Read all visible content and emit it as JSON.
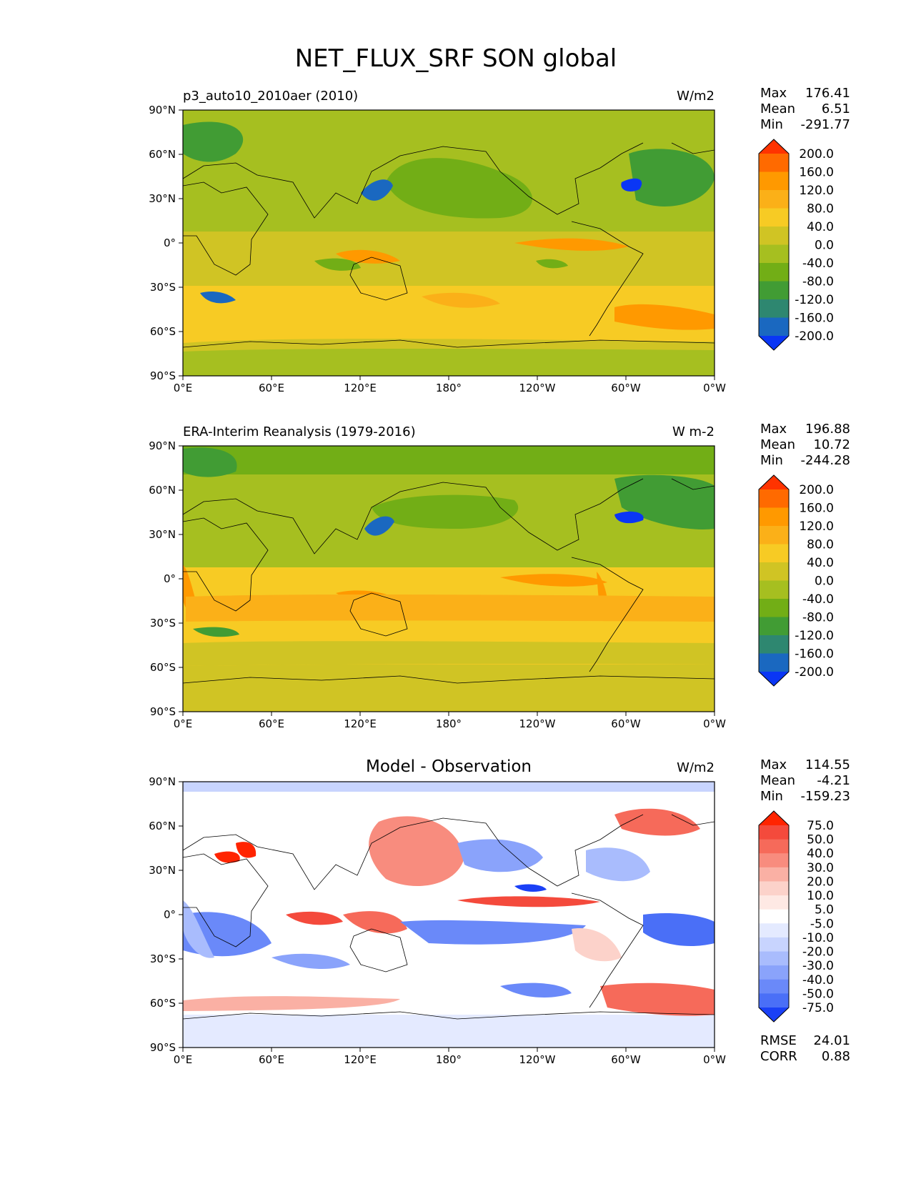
{
  "title": "NET_FLUX_SRF SON global",
  "x_ticks": [
    "0°E",
    "60°E",
    "120°E",
    "180°",
    "120°W",
    "60°W",
    "0°W"
  ],
  "y_ticks": [
    "90°N",
    "60°N",
    "30°N",
    "0°",
    "30°S",
    "60°S",
    "90°S"
  ],
  "stat_labels": {
    "max": "Max",
    "mean": "Mean",
    "min": "Min",
    "rmse": "RMSE",
    "corr": "CORR"
  },
  "panels": [
    {
      "title": "p3_auto10_2010aer (2010)",
      "title_align": "left",
      "units": "W/m2",
      "stats": {
        "max": "176.41",
        "mean": "6.51",
        "min": "-291.77"
      },
      "colorbar": {
        "labels": [
          "200.0",
          "160.0",
          "120.0",
          "80.0",
          "40.0",
          "0.0",
          "-40.0",
          "-80.0",
          "-120.0",
          "-160.0",
          "-200.0"
        ],
        "colors": [
          "#ff3300",
          "#ff6a00",
          "#ff9900",
          "#fbb018",
          "#f7cb24",
          "#d0c424",
          "#a6bf20",
          "#72ae16",
          "#419c34",
          "#2e8770",
          "#1a68c0",
          "#0a36f5"
        ]
      }
    },
    {
      "title": "ERA-Interim Reanalysis (1979-2016)",
      "title_align": "left",
      "units": "W m-2",
      "stats": {
        "max": "196.88",
        "mean": "10.72",
        "min": "-244.28"
      },
      "colorbar": {
        "labels": [
          "200.0",
          "160.0",
          "120.0",
          "80.0",
          "40.0",
          "0.0",
          "-40.0",
          "-80.0",
          "-120.0",
          "-160.0",
          "-200.0"
        ],
        "colors": [
          "#ff3300",
          "#ff6a00",
          "#ff9900",
          "#fbb018",
          "#f7cb24",
          "#d0c424",
          "#a6bf20",
          "#72ae16",
          "#419c34",
          "#2e8770",
          "#1a68c0",
          "#0a36f5"
        ]
      }
    },
    {
      "title": "Model - Observation",
      "title_align": "center",
      "units": "W/m2",
      "stats": {
        "max": "114.55",
        "mean": "-4.21",
        "min": "-159.23"
      },
      "rmse": "24.01",
      "corr": "0.88",
      "colorbar": {
        "labels": [
          "75.0",
          "50.0",
          "40.0",
          "30.0",
          "20.0",
          "10.0",
          "5.0",
          "-5.0",
          "-10.0",
          "-20.0",
          "-30.0",
          "-40.0",
          "-50.0",
          "-75.0"
        ],
        "colors": [
          "#ff2400",
          "#f44a3c",
          "#f66a5a",
          "#f88c7e",
          "#fab0a4",
          "#fcd2ca",
          "#fee9e4",
          "#ffffff",
          "#e4eaff",
          "#c8d4fe",
          "#a9bcfd",
          "#8aa3fb",
          "#6a89f9",
          "#4a6ff7",
          "#1a40f6"
        ]
      }
    }
  ],
  "chart_data": [
    {
      "type": "heatmap",
      "title": "p3_auto10_2010aer (2010)",
      "units": "W/m2",
      "xlabel": "",
      "ylabel": "",
      "xlim": [
        0,
        360
      ],
      "ylim": [
        -90,
        90
      ],
      "x_tick_values": [
        0,
        60,
        120,
        180,
        240,
        300,
        360
      ],
      "y_tick_values": [
        90,
        60,
        30,
        0,
        -30,
        -60,
        -90
      ],
      "levels": [
        -200,
        -160,
        -120,
        -80,
        -40,
        0,
        40,
        80,
        120,
        160,
        200
      ],
      "max": 176.41,
      "mean": 6.51,
      "min": -291.77
    },
    {
      "type": "heatmap",
      "title": "ERA-Interim Reanalysis (1979-2016)",
      "units": "W m-2",
      "xlim": [
        0,
        360
      ],
      "ylim": [
        -90,
        90
      ],
      "x_tick_values": [
        0,
        60,
        120,
        180,
        240,
        300,
        360
      ],
      "y_tick_values": [
        90,
        60,
        30,
        0,
        -30,
        -60,
        -90
      ],
      "levels": [
        -200,
        -160,
        -120,
        -80,
        -40,
        0,
        40,
        80,
        120,
        160,
        200
      ],
      "max": 196.88,
      "mean": 10.72,
      "min": -244.28
    },
    {
      "type": "heatmap",
      "title": "Model - Observation",
      "units": "W/m2",
      "xlim": [
        0,
        360
      ],
      "ylim": [
        -90,
        90
      ],
      "x_tick_values": [
        0,
        60,
        120,
        180,
        240,
        300,
        360
      ],
      "y_tick_values": [
        90,
        60,
        30,
        0,
        -30,
        -60,
        -90
      ],
      "levels": [
        -75,
        -50,
        -40,
        -30,
        -20,
        -10,
        -5,
        5,
        10,
        20,
        30,
        40,
        50,
        75
      ],
      "max": 114.55,
      "mean": -4.21,
      "min": -159.23,
      "rmse": 24.01,
      "corr": 0.88
    }
  ]
}
